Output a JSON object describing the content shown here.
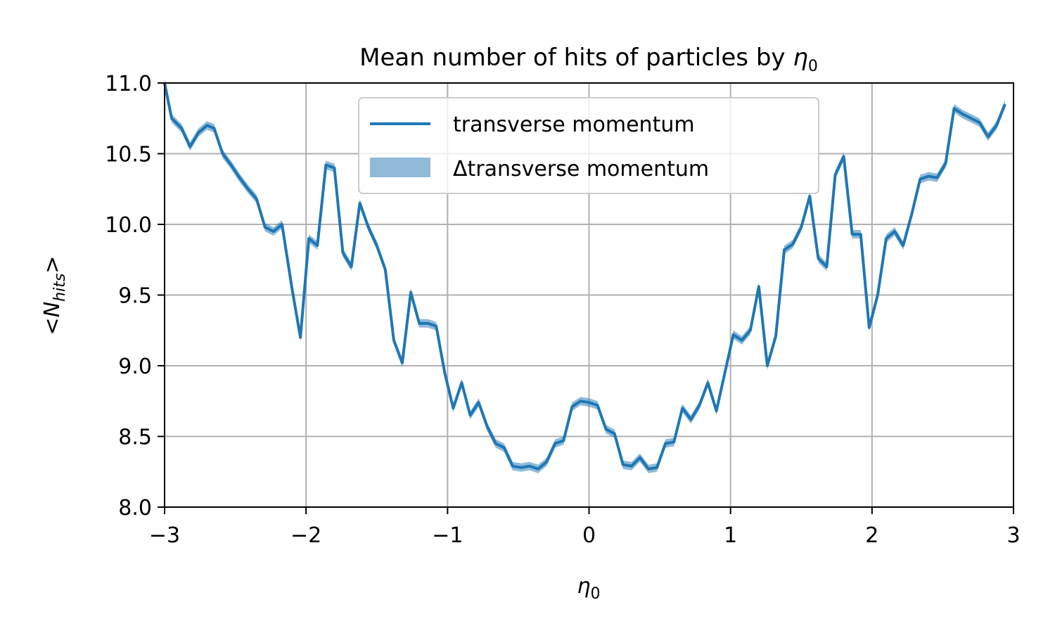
{
  "chart_data": {
    "type": "line",
    "title": "Mean number of hits of particles by η₀",
    "xlabel": "η₀",
    "ylabel": "<N_hits>",
    "xlim": [
      -3,
      3
    ],
    "ylim": [
      8.0,
      11.0
    ],
    "xticks": [
      -3,
      -2,
      -1,
      0,
      1,
      2,
      3
    ],
    "xtick_labels": [
      "−3",
      "−2",
      "−1",
      "0",
      "1",
      "2",
      "3"
    ],
    "yticks": [
      8.0,
      8.5,
      9.0,
      9.5,
      10.0,
      10.5,
      11.0
    ],
    "ytick_labels": [
      "8.0",
      "8.5",
      "9.0",
      "9.5",
      "10.0",
      "10.5",
      "11.0"
    ],
    "grid": true,
    "legend_position": "upper center",
    "series": [
      {
        "name": "transverse momentum",
        "color": "#1f77b4",
        "band_label": "Δtransverse momentum",
        "band_color": "#1f77b4",
        "x": [
          -3.0,
          -2.95,
          -2.88,
          -2.82,
          -2.76,
          -2.7,
          -2.65,
          -2.59,
          -2.53,
          -2.47,
          -2.41,
          -2.35,
          -2.29,
          -2.23,
          -2.17,
          -2.1,
          -2.04,
          -1.98,
          -1.92,
          -1.86,
          -1.8,
          -1.74,
          -1.68,
          -1.62,
          -1.56,
          -1.5,
          -1.44,
          -1.38,
          -1.32,
          -1.26,
          -1.2,
          -1.14,
          -1.08,
          -1.02,
          -0.96,
          -0.9,
          -0.84,
          -0.78,
          -0.72,
          -0.66,
          -0.6,
          -0.54,
          -0.48,
          -0.42,
          -0.36,
          -0.3,
          -0.24,
          -0.18,
          -0.12,
          -0.06,
          0.0,
          0.06,
          0.12,
          0.18,
          0.24,
          0.3,
          0.36,
          0.42,
          0.48,
          0.54,
          0.6,
          0.66,
          0.72,
          0.78,
          0.84,
          0.9,
          0.96,
          1.02,
          1.08,
          1.14,
          1.2,
          1.26,
          1.32,
          1.38,
          1.44,
          1.5,
          1.56,
          1.62,
          1.68,
          1.74,
          1.8,
          1.86,
          1.92,
          1.98,
          2.04,
          2.1,
          2.16,
          2.22,
          2.28,
          2.34,
          2.4,
          2.46,
          2.52,
          2.58,
          2.64,
          2.7,
          2.76,
          2.82,
          2.88,
          2.94
        ],
        "y": [
          11.0,
          10.75,
          10.68,
          10.55,
          10.65,
          10.7,
          10.68,
          10.5,
          10.42,
          10.33,
          10.25,
          10.18,
          9.98,
          9.95,
          10.0,
          9.55,
          9.2,
          9.9,
          9.85,
          10.42,
          10.4,
          9.8,
          9.7,
          10.15,
          9.98,
          9.85,
          9.68,
          9.18,
          9.02,
          9.52,
          9.3,
          9.3,
          9.28,
          8.95,
          8.7,
          8.88,
          8.65,
          8.74,
          8.57,
          8.45,
          8.42,
          8.29,
          8.28,
          8.29,
          8.27,
          8.32,
          8.45,
          8.47,
          8.71,
          8.75,
          8.74,
          8.72,
          8.55,
          8.52,
          8.3,
          8.29,
          8.35,
          8.27,
          8.28,
          8.45,
          8.46,
          8.7,
          8.62,
          8.72,
          8.88,
          8.68,
          8.95,
          9.22,
          9.18,
          9.25,
          9.56,
          9.0,
          9.21,
          9.82,
          9.86,
          9.98,
          10.2,
          9.76,
          9.7,
          10.35,
          10.48,
          9.93,
          9.93,
          9.27,
          9.5,
          9.9,
          9.95,
          9.85,
          10.07,
          10.32,
          10.34,
          10.33,
          10.43,
          10.82,
          10.78,
          10.75,
          10.72,
          10.62,
          10.7,
          10.85
        ],
        "err": [
          0.03,
          0.03,
          0.03,
          0.03,
          0.03,
          0.03,
          0.03,
          0.03,
          0.03,
          0.03,
          0.03,
          0.03,
          0.03,
          0.03,
          0.03,
          0.03,
          0.03,
          0.03,
          0.03,
          0.03,
          0.03,
          0.03,
          0.03,
          0.03,
          0.03,
          0.03,
          0.03,
          0.03,
          0.03,
          0.03,
          0.03,
          0.03,
          0.03,
          0.03,
          0.03,
          0.03,
          0.03,
          0.03,
          0.03,
          0.03,
          0.03,
          0.03,
          0.03,
          0.03,
          0.03,
          0.03,
          0.03,
          0.03,
          0.03,
          0.03,
          0.03,
          0.03,
          0.03,
          0.03,
          0.03,
          0.03,
          0.03,
          0.03,
          0.03,
          0.03,
          0.03,
          0.03,
          0.03,
          0.03,
          0.03,
          0.03,
          0.03,
          0.03,
          0.03,
          0.03,
          0.03,
          0.03,
          0.03,
          0.03,
          0.03,
          0.03,
          0.03,
          0.03,
          0.03,
          0.03,
          0.03,
          0.03,
          0.03,
          0.03,
          0.03,
          0.03,
          0.03,
          0.03,
          0.03,
          0.03,
          0.03,
          0.03,
          0.03,
          0.03,
          0.03,
          0.03,
          0.03,
          0.03,
          0.03,
          0.03
        ]
      }
    ]
  }
}
